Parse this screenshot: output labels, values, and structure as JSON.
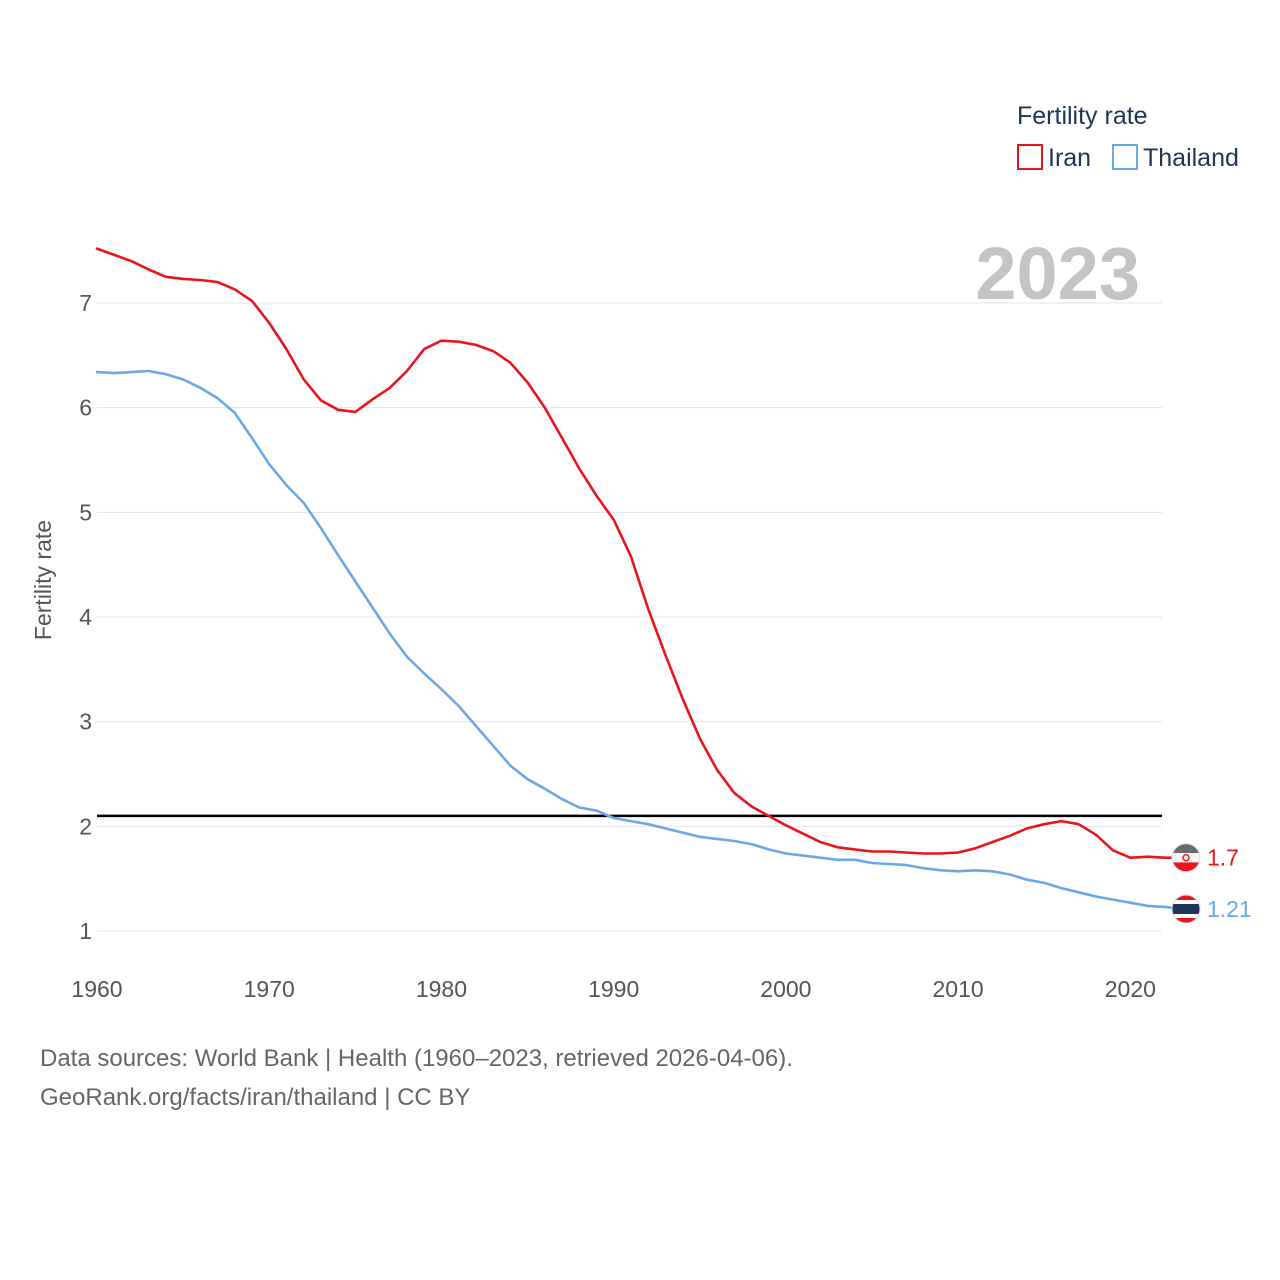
{
  "chart_data": {
    "type": "line",
    "title": "",
    "xlabel": "",
    "ylabel": "Fertility rate",
    "xlim": [
      1960,
      2023
    ],
    "ylim": [
      0.55,
      7.65
    ],
    "x_ticks": [
      1960,
      1970,
      1980,
      1990,
      2000,
      2010,
      2020
    ],
    "y_ticks": [
      1,
      2,
      3,
      4,
      5,
      6,
      7
    ],
    "grid": true,
    "legend_title": "Fertility rate",
    "legend_position": "top-right",
    "current_year": "2023",
    "reference_line": 2.1,
    "x": [
      1960,
      1961,
      1962,
      1963,
      1964,
      1965,
      1966,
      1967,
      1968,
      1969,
      1970,
      1971,
      1972,
      1973,
      1974,
      1975,
      1976,
      1977,
      1978,
      1979,
      1980,
      1981,
      1982,
      1983,
      1984,
      1985,
      1986,
      1987,
      1988,
      1989,
      1990,
      1991,
      1992,
      1993,
      1994,
      1995,
      1996,
      1997,
      1998,
      1999,
      2000,
      2001,
      2002,
      2003,
      2004,
      2005,
      2006,
      2007,
      2008,
      2009,
      2010,
      2011,
      2012,
      2013,
      2014,
      2015,
      2016,
      2017,
      2018,
      2019,
      2020,
      2021,
      2022,
      2023
    ],
    "series": [
      {
        "name": "Iran",
        "color": "#e8161c",
        "end_label": "1.7",
        "flag": "iran-flag-icon",
        "values": [
          7.52,
          7.46,
          7.4,
          7.32,
          7.25,
          7.23,
          7.22,
          7.2,
          7.13,
          7.02,
          6.81,
          6.56,
          6.27,
          6.07,
          5.98,
          5.96,
          6.08,
          6.19,
          6.35,
          6.56,
          6.64,
          6.63,
          6.6,
          6.54,
          6.43,
          6.24,
          6.0,
          5.71,
          5.42,
          5.16,
          4.93,
          4.58,
          4.08,
          3.64,
          3.22,
          2.84,
          2.54,
          2.32,
          2.19,
          2.1,
          2.01,
          1.93,
          1.85,
          1.8,
          1.78,
          1.76,
          1.76,
          1.75,
          1.74,
          1.74,
          1.75,
          1.79,
          1.85,
          1.91,
          1.98,
          2.02,
          2.05,
          2.02,
          1.92,
          1.77,
          1.7,
          1.71,
          1.7,
          1.7
        ]
      },
      {
        "name": "Thailand",
        "color": "#6aa9e6",
        "end_label": "1.21",
        "flag": "thailand-flag-icon",
        "values": [
          6.34,
          6.33,
          6.34,
          6.35,
          6.32,
          6.27,
          6.19,
          6.09,
          5.95,
          5.71,
          5.46,
          5.26,
          5.09,
          4.85,
          4.59,
          4.34,
          4.09,
          3.84,
          3.62,
          3.46,
          3.31,
          3.15,
          2.96,
          2.77,
          2.58,
          2.45,
          2.36,
          2.26,
          2.18,
          2.15,
          2.08,
          2.05,
          2.02,
          1.98,
          1.94,
          1.9,
          1.88,
          1.86,
          1.83,
          1.78,
          1.74,
          1.72,
          1.7,
          1.68,
          1.68,
          1.65,
          1.64,
          1.63,
          1.6,
          1.58,
          1.57,
          1.58,
          1.57,
          1.54,
          1.49,
          1.46,
          1.41,
          1.37,
          1.33,
          1.3,
          1.27,
          1.24,
          1.23,
          1.21
        ]
      }
    ]
  },
  "footer": {
    "source": "Data sources: World Bank | Health (1960–2023, retrieved 2026-04-06).",
    "credit": "GeoRank.org/facts/iran/thailand | CC BY"
  }
}
